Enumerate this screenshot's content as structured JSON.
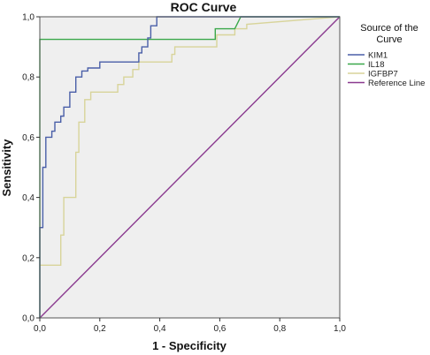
{
  "chart_data": {
    "type": "line",
    "title": "ROC Curve",
    "xlabel": "1 - Specificity",
    "ylabel": "Sensitivity",
    "xlim": [
      0,
      1
    ],
    "ylim": [
      0,
      1
    ],
    "x_ticks": [
      "0,0",
      "0,2",
      "0,4",
      "0,6",
      "0,8",
      "1,0"
    ],
    "y_ticks": [
      "0,0",
      "0,2",
      "0,4",
      "0,6",
      "0,8",
      "1,0"
    ],
    "grid": false,
    "legend": {
      "title_lines": [
        "Source of the",
        "Curve"
      ],
      "placement": "right"
    },
    "background_color": "#efefef",
    "series": [
      {
        "name": "KIM1",
        "color": "#4a5fa8",
        "points": [
          [
            0,
            0
          ],
          [
            0,
            0.3
          ],
          [
            0.01,
            0.3
          ],
          [
            0.01,
            0.5
          ],
          [
            0.02,
            0.5
          ],
          [
            0.02,
            0.6
          ],
          [
            0.04,
            0.6
          ],
          [
            0.04,
            0.62
          ],
          [
            0.05,
            0.62
          ],
          [
            0.05,
            0.65
          ],
          [
            0.07,
            0.65
          ],
          [
            0.07,
            0.67
          ],
          [
            0.08,
            0.67
          ],
          [
            0.08,
            0.7
          ],
          [
            0.1,
            0.7
          ],
          [
            0.1,
            0.75
          ],
          [
            0.12,
            0.75
          ],
          [
            0.12,
            0.8
          ],
          [
            0.14,
            0.8
          ],
          [
            0.14,
            0.82
          ],
          [
            0.16,
            0.82
          ],
          [
            0.16,
            0.83
          ],
          [
            0.2,
            0.83
          ],
          [
            0.2,
            0.85
          ],
          [
            0.33,
            0.85
          ],
          [
            0.33,
            0.88
          ],
          [
            0.34,
            0.88
          ],
          [
            0.34,
            0.9
          ],
          [
            0.36,
            0.9
          ],
          [
            0.36,
            0.93
          ],
          [
            0.37,
            0.93
          ],
          [
            0.37,
            0.97
          ],
          [
            0.39,
            0.97
          ],
          [
            0.39,
            1.0
          ],
          [
            1.0,
            1.0
          ]
        ]
      },
      {
        "name": "IL18",
        "color": "#3aa84a",
        "points": [
          [
            0,
            0
          ],
          [
            0,
            0.925
          ],
          [
            0.585,
            0.925
          ],
          [
            0.585,
            0.96
          ],
          [
            0.65,
            0.96
          ],
          [
            0.67,
            1.0
          ],
          [
            1.0,
            1.0
          ]
        ]
      },
      {
        "name": "IGFBP7",
        "color": "#d8d49a",
        "points": [
          [
            0,
            0.175
          ],
          [
            0.07,
            0.175
          ],
          [
            0.07,
            0.275
          ],
          [
            0.08,
            0.275
          ],
          [
            0.08,
            0.4
          ],
          [
            0.12,
            0.4
          ],
          [
            0.12,
            0.55
          ],
          [
            0.13,
            0.55
          ],
          [
            0.13,
            0.65
          ],
          [
            0.15,
            0.65
          ],
          [
            0.15,
            0.725
          ],
          [
            0.17,
            0.725
          ],
          [
            0.17,
            0.75
          ],
          [
            0.26,
            0.75
          ],
          [
            0.26,
            0.775
          ],
          [
            0.28,
            0.775
          ],
          [
            0.28,
            0.8
          ],
          [
            0.31,
            0.8
          ],
          [
            0.31,
            0.825
          ],
          [
            0.33,
            0.825
          ],
          [
            0.33,
            0.85
          ],
          [
            0.44,
            0.85
          ],
          [
            0.44,
            0.875
          ],
          [
            0.45,
            0.875
          ],
          [
            0.45,
            0.9
          ],
          [
            0.59,
            0.9
          ],
          [
            0.59,
            0.94
          ],
          [
            0.65,
            0.94
          ],
          [
            0.65,
            0.96
          ],
          [
            0.69,
            0.96
          ],
          [
            0.69,
            0.975
          ],
          [
            1.0,
            1.0
          ]
        ]
      },
      {
        "name": "Reference Line",
        "color": "#8a3a8f",
        "points": [
          [
            0,
            0
          ],
          [
            1,
            1
          ]
        ]
      }
    ]
  }
}
